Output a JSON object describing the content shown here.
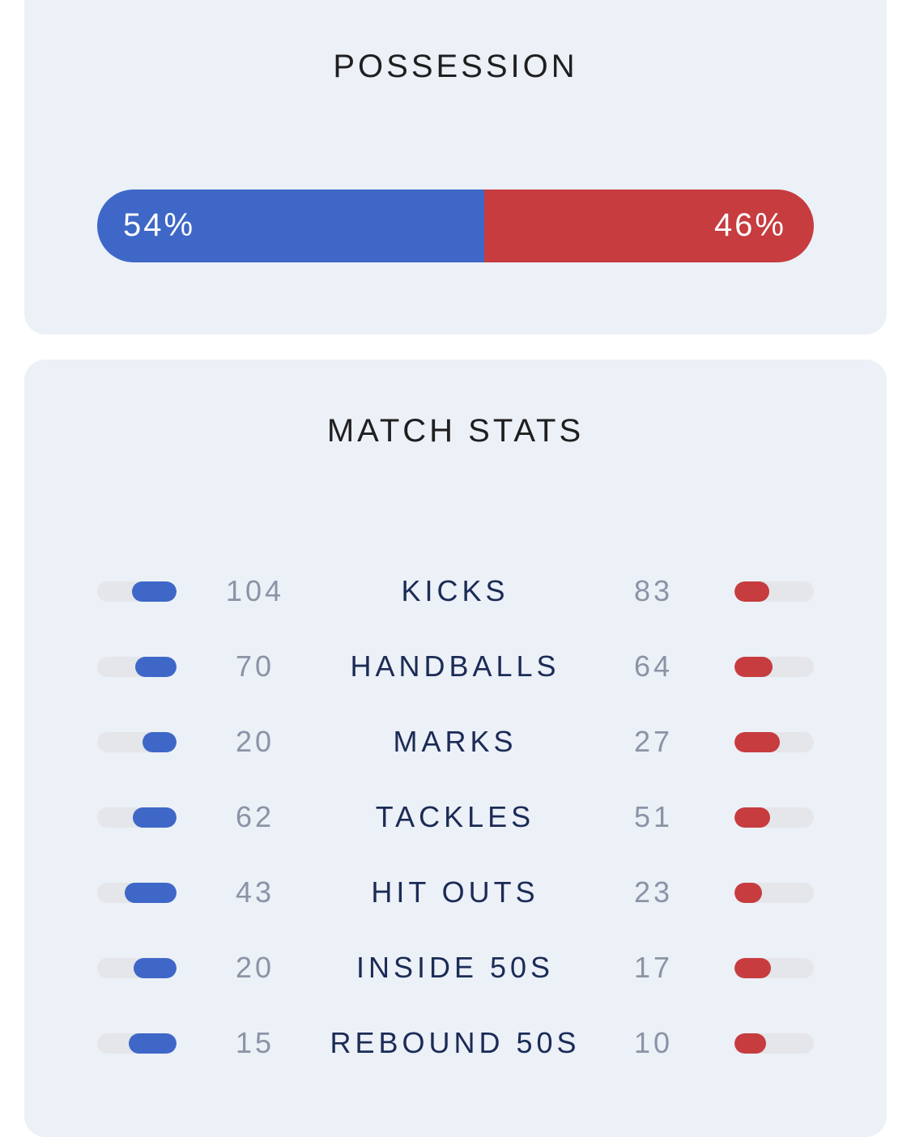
{
  "possession": {
    "title": "POSSESSION",
    "home_pct_label": "54%",
    "away_pct_label": "46%",
    "home_pct": 54,
    "away_pct": 46
  },
  "match_stats": {
    "title": "MATCH STATS",
    "rows": [
      {
        "label": "KICKS",
        "home": "104",
        "away": "83",
        "home_bar": 0.56,
        "away_bar": 0.44
      },
      {
        "label": "HANDBALLS",
        "home": "70",
        "away": "64",
        "home_bar": 0.52,
        "away_bar": 0.48
      },
      {
        "label": "MARKS",
        "home": "20",
        "away": "27",
        "home_bar": 0.43,
        "away_bar": 0.57
      },
      {
        "label": "TACKLES",
        "home": "62",
        "away": "51",
        "home_bar": 0.55,
        "away_bar": 0.45
      },
      {
        "label": "HIT OUTS",
        "home": "43",
        "away": "23",
        "home_bar": 0.65,
        "away_bar": 0.35
      },
      {
        "label": "INSIDE 50S",
        "home": "20",
        "away": "17",
        "home_bar": 0.54,
        "away_bar": 0.46
      },
      {
        "label": "REBOUND 50S",
        "home": "15",
        "away": "10",
        "home_bar": 0.6,
        "away_bar": 0.4
      }
    ]
  },
  "colors": {
    "home": "#3e67c7",
    "away": "#c63c3f",
    "card_bg": "#ecf0f7",
    "track": "#e4e6ea"
  }
}
